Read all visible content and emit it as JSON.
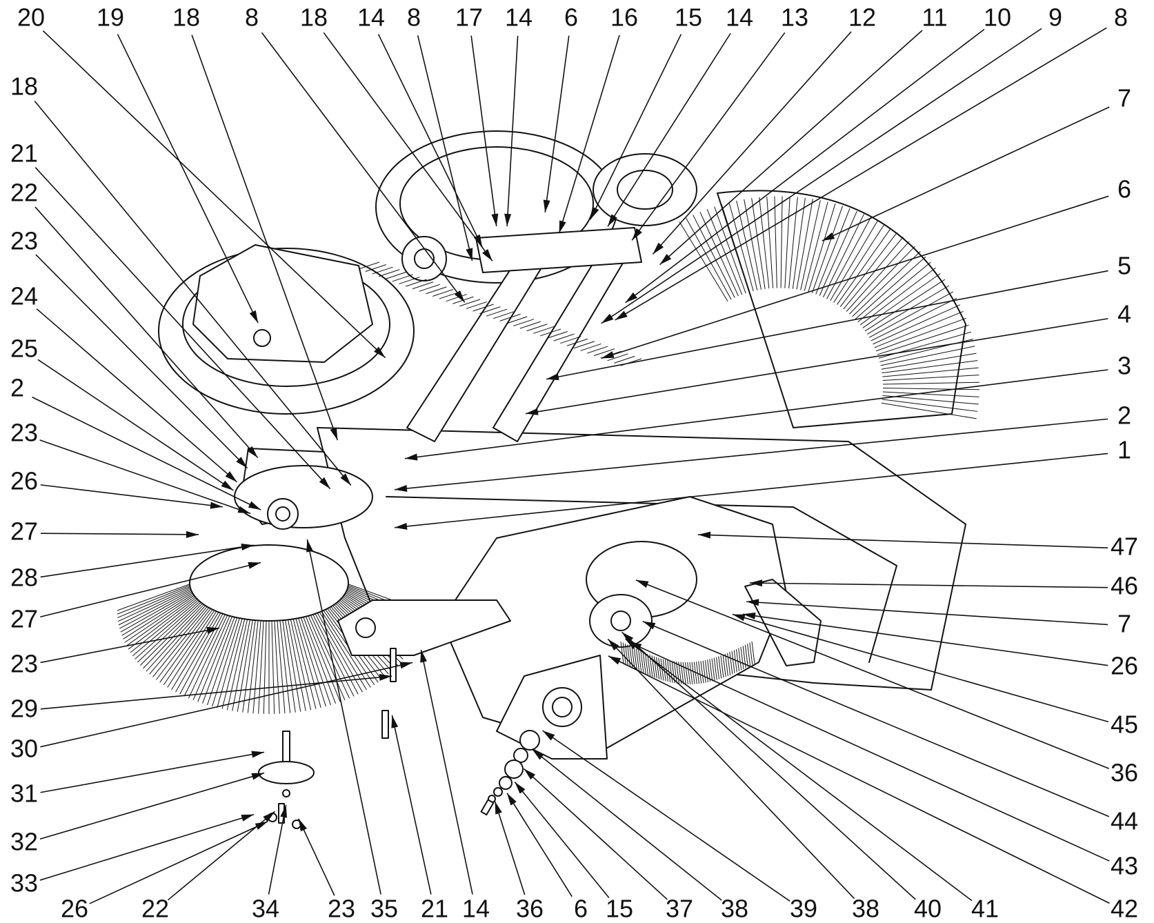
{
  "callouts": [
    {
      "label": "20"
    },
    {
      "label": "19"
    },
    {
      "label": "18"
    },
    {
      "label": "8"
    },
    {
      "label": "18"
    },
    {
      "label": "14"
    },
    {
      "label": "8"
    },
    {
      "label": "17"
    },
    {
      "label": "14"
    },
    {
      "label": "6"
    },
    {
      "label": "16"
    },
    {
      "label": "15"
    },
    {
      "label": "14"
    },
    {
      "label": "13"
    },
    {
      "label": "12"
    },
    {
      "label": "11"
    },
    {
      "label": "10"
    },
    {
      "label": "9"
    },
    {
      "label": "8"
    },
    {
      "label": "18"
    },
    {
      "label": "21"
    },
    {
      "label": "22"
    },
    {
      "label": "23"
    },
    {
      "label": "24"
    },
    {
      "label": "25"
    },
    {
      "label": "2"
    },
    {
      "label": "23"
    },
    {
      "label": "26"
    },
    {
      "label": "27"
    },
    {
      "label": "28"
    },
    {
      "label": "27"
    },
    {
      "label": "23"
    },
    {
      "label": "29"
    },
    {
      "label": "30"
    },
    {
      "label": "31"
    },
    {
      "label": "32"
    },
    {
      "label": "33"
    },
    {
      "label": "7"
    },
    {
      "label": "6"
    },
    {
      "label": "5"
    },
    {
      "label": "4"
    },
    {
      "label": "3"
    },
    {
      "label": "2"
    },
    {
      "label": "1"
    },
    {
      "label": "47"
    },
    {
      "label": "46"
    },
    {
      "label": "7"
    },
    {
      "label": "26"
    },
    {
      "label": "45"
    },
    {
      "label": "36"
    },
    {
      "label": "44"
    },
    {
      "label": "43"
    },
    {
      "label": "42"
    },
    {
      "label": "26"
    },
    {
      "label": "22"
    },
    {
      "label": "34"
    },
    {
      "label": "23"
    },
    {
      "label": "35"
    },
    {
      "label": "21"
    },
    {
      "label": "14"
    },
    {
      "label": "36"
    },
    {
      "label": "6"
    },
    {
      "label": "15"
    },
    {
      "label": "37"
    },
    {
      "label": "38"
    },
    {
      "label": "39"
    },
    {
      "label": "38"
    },
    {
      "label": "40"
    },
    {
      "label": "41"
    }
  ]
}
